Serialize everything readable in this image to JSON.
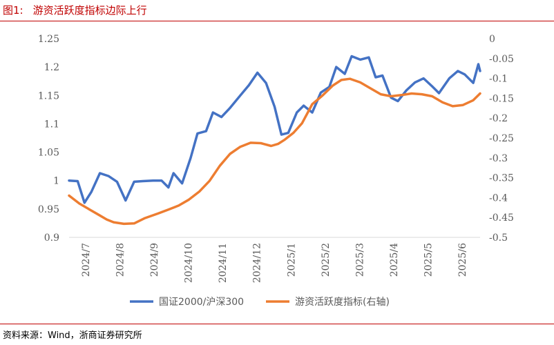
{
  "figure": {
    "number": "图1:",
    "title": "游资活跃度指标边际上行",
    "source": "资料来源：Wind，浙商证券研究所"
  },
  "colors": {
    "rule": "#c00000",
    "series1": "#4472c4",
    "series2": "#ed7d31",
    "axis_text": "#595959",
    "axis_line": "#d9d9d9"
  },
  "chart_data": {
    "type": "line",
    "title": "游资活跃度指标边际上行",
    "x_tick_labels": [
      "2024/7",
      "2024/8",
      "2024/9",
      "2024/10",
      "2024/11",
      "2024/12",
      "2025/1",
      "2025/2",
      "2025/3",
      "2025/4",
      "2025/5",
      "2025/6"
    ],
    "x_range": [
      0,
      12
    ],
    "y_left": {
      "label": "国证2000/沪深300",
      "range": [
        0.9,
        1.25
      ],
      "ticks": [
        0.9,
        0.95,
        1,
        1.05,
        1.1,
        1.15,
        1.2,
        1.25
      ],
      "tick_labels": [
        "0.9",
        "0.95",
        "1",
        "1.05",
        "1.1",
        "1.15",
        "1.2",
        "1.25"
      ]
    },
    "y_right": {
      "label": "游资活跃度指标(右轴)",
      "range": [
        -0.5,
        0
      ],
      "ticks": [
        0,
        -0.05,
        -0.1,
        -0.15,
        -0.2,
        -0.25,
        -0.3,
        -0.35,
        -0.4,
        -0.45,
        -0.5
      ],
      "tick_labels": [
        "0",
        "-0.05",
        "-0.1",
        "-0.15",
        "-0.2",
        "-0.25",
        "-0.3",
        "-0.35",
        "-0.4",
        "-0.45",
        "-0.5"
      ]
    },
    "legend_position": "bottom",
    "series": [
      {
        "name": "国证2000/沪深300",
        "axis": "left",
        "color": "#4472c4",
        "x": [
          0,
          0.25,
          0.45,
          0.65,
          0.9,
          1.15,
          1.4,
          1.65,
          1.9,
          2.15,
          2.45,
          2.7,
          2.9,
          3.05,
          3.3,
          3.55,
          3.75,
          4.0,
          4.2,
          4.45,
          4.7,
          5.0,
          5.25,
          5.5,
          5.75,
          6.0,
          6.2,
          6.4,
          6.65,
          6.85,
          7.1,
          7.35,
          7.6,
          7.8,
          8.05,
          8.25,
          8.5,
          8.75,
          8.95,
          9.15,
          9.4,
          9.6,
          9.85,
          10.1,
          10.35,
          10.6,
          10.8,
          11.1,
          11.35,
          11.55,
          11.8,
          11.95
        ],
        "values": [
          1.0,
          0.999,
          0.961,
          0.98,
          1.013,
          1.008,
          0.998,
          0.965,
          0.998,
          0.999,
          1.0,
          1.0,
          0.988,
          1.013,
          0.995,
          1.04,
          1.083,
          1.087,
          1.12,
          1.112,
          1.128,
          1.15,
          1.168,
          1.19,
          1.172,
          1.13,
          1.081,
          1.084,
          1.12,
          1.132,
          1.12,
          1.155,
          1.165,
          1.2,
          1.188,
          1.219,
          1.213,
          1.217,
          1.182,
          1.185,
          1.146,
          1.14,
          1.159,
          1.173,
          1.18,
          1.166,
          1.154,
          1.18,
          1.193,
          1.187,
          1.172,
          1.205
        ],
        "extra_tail": {
          "x": 12.0,
          "value": 1.193
        }
      },
      {
        "name": "游资活跃度指标(右轴)",
        "axis": "right",
        "color": "#ed7d31",
        "x": [
          0,
          0.3,
          0.6,
          0.9,
          1.1,
          1.3,
          1.6,
          1.9,
          2.2,
          2.6,
          2.9,
          3.2,
          3.5,
          3.8,
          4.1,
          4.4,
          4.7,
          5.0,
          5.3,
          5.6,
          5.9,
          6.1,
          6.3,
          6.55,
          6.8,
          7.1,
          7.4,
          7.7,
          7.95,
          8.2,
          8.5,
          8.8,
          9.1,
          9.4,
          9.7,
          10.0,
          10.3,
          10.6,
          10.9,
          11.2,
          11.5,
          11.8,
          12.0
        ],
        "values": [
          -0.395,
          -0.415,
          -0.43,
          -0.445,
          -0.455,
          -0.462,
          -0.466,
          -0.465,
          -0.452,
          -0.44,
          -0.43,
          -0.42,
          -0.405,
          -0.385,
          -0.358,
          -0.32,
          -0.29,
          -0.272,
          -0.262,
          -0.263,
          -0.27,
          -0.265,
          -0.254,
          -0.237,
          -0.213,
          -0.165,
          -0.143,
          -0.118,
          -0.104,
          -0.101,
          -0.11,
          -0.125,
          -0.14,
          -0.145,
          -0.142,
          -0.138,
          -0.14,
          -0.145,
          -0.16,
          -0.17,
          -0.167,
          -0.155,
          -0.138
        ]
      }
    ]
  }
}
